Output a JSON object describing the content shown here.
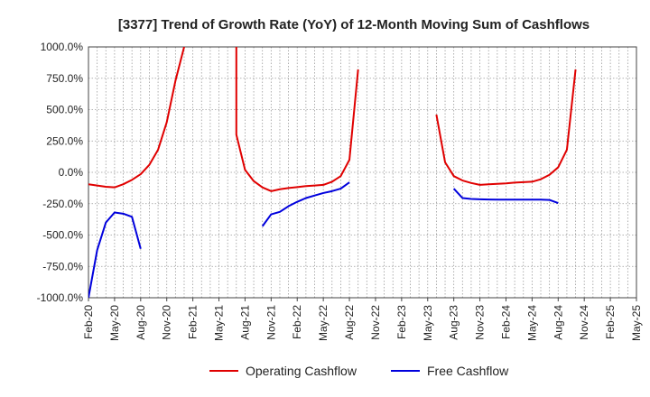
{
  "chart_data": {
    "type": "line",
    "title": "[3377]  Trend of Growth Rate (YoY) of 12-Month Moving Sum of Cashflows",
    "xlabel": "",
    "ylabel": "",
    "ylim": [
      -1000,
      1000
    ],
    "yticks": [
      -1000,
      -750,
      -500,
      -250,
      0,
      250,
      500,
      750,
      1000
    ],
    "ytick_labels": [
      "-1000.0%",
      "-750.0%",
      "-500.0%",
      "-250.0%",
      "0.0%",
      "250.0%",
      "500.0%",
      "750.0%",
      "1000.0%"
    ],
    "xlim": [
      "2020-02",
      "2025-05"
    ],
    "xtick_labels": [
      "Feb-20",
      "May-20",
      "Aug-20",
      "Nov-20",
      "Feb-21",
      "May-21",
      "Aug-21",
      "Nov-21",
      "Feb-22",
      "May-22",
      "Aug-22",
      "Nov-22",
      "Feb-23",
      "May-23",
      "Aug-23",
      "Nov-23",
      "Feb-24",
      "May-24",
      "Aug-24",
      "Nov-24",
      "Feb-25",
      "May-25"
    ],
    "grid": true,
    "legend_position": "bottom",
    "series": [
      {
        "name": "Operating Cashflow",
        "color": "#e00000",
        "segments": [
          [
            [
              "2020-02",
              -95
            ],
            [
              "2020-03",
              -105
            ],
            [
              "2020-04",
              -115
            ],
            [
              "2020-05",
              -120
            ],
            [
              "2020-06",
              -95
            ],
            [
              "2020-07",
              -60
            ],
            [
              "2020-08",
              -15
            ],
            [
              "2020-09",
              60
            ],
            [
              "2020-10",
              180
            ],
            [
              "2020-11",
              400
            ],
            [
              "2020-12",
              730
            ],
            [
              "2021-01",
              1000
            ]
          ],
          [
            [
              "2021-07",
              1000
            ],
            [
              "2021-07",
              300
            ],
            [
              "2021-08",
              20
            ],
            [
              "2021-09",
              -70
            ],
            [
              "2021-10",
              -120
            ],
            [
              "2021-11",
              -150
            ],
            [
              "2021-12",
              -135
            ],
            [
              "2022-01",
              -125
            ],
            [
              "2022-02",
              -118
            ],
            [
              "2022-03",
              -110
            ],
            [
              "2022-04",
              -105
            ],
            [
              "2022-05",
              -100
            ],
            [
              "2022-06",
              -75
            ],
            [
              "2022-07",
              -30
            ],
            [
              "2022-08",
              100
            ],
            [
              "2022-09",
              820
            ]
          ],
          [
            [
              "2023-06",
              460
            ],
            [
              "2023-07",
              80
            ],
            [
              "2023-08",
              -30
            ],
            [
              "2023-09",
              -65
            ],
            [
              "2023-10",
              -85
            ],
            [
              "2023-11",
              -100
            ],
            [
              "2023-12",
              -95
            ],
            [
              "2024-01",
              -92
            ],
            [
              "2024-02",
              -88
            ],
            [
              "2024-03",
              -82
            ],
            [
              "2024-04",
              -78
            ],
            [
              "2024-05",
              -75
            ],
            [
              "2024-06",
              -55
            ],
            [
              "2024-07",
              -20
            ],
            [
              "2024-08",
              40
            ],
            [
              "2024-09",
              180
            ],
            [
              "2024-10",
              820
            ]
          ]
        ]
      },
      {
        "name": "Free Cashflow",
        "color": "#0000dd",
        "segments": [
          [
            [
              "2020-02",
              -1000
            ],
            [
              "2020-03",
              -620
            ],
            [
              "2020-04",
              -400
            ],
            [
              "2020-05",
              -320
            ],
            [
              "2020-06",
              -330
            ],
            [
              "2020-07",
              -355
            ],
            [
              "2020-08",
              -610
            ]
          ],
          [
            [
              "2021-10",
              -430
            ],
            [
              "2021-11",
              -335
            ],
            [
              "2021-12",
              -315
            ],
            [
              "2022-01",
              -270
            ],
            [
              "2022-02",
              -235
            ],
            [
              "2022-03",
              -205
            ],
            [
              "2022-04",
              -185
            ],
            [
              "2022-05",
              -165
            ],
            [
              "2022-06",
              -150
            ],
            [
              "2022-07",
              -130
            ],
            [
              "2022-08",
              -80
            ]
          ],
          [
            [
              "2023-08",
              -130
            ],
            [
              "2023-09",
              -205
            ],
            [
              "2023-10",
              -212
            ],
            [
              "2023-11",
              -215
            ],
            [
              "2023-12",
              -217
            ],
            [
              "2024-01",
              -218
            ],
            [
              "2024-02",
              -218
            ],
            [
              "2024-03",
              -218
            ],
            [
              "2024-04",
              -218
            ],
            [
              "2024-05",
              -218
            ],
            [
              "2024-06",
              -218
            ],
            [
              "2024-07",
              -220
            ],
            [
              "2024-08",
              -245
            ]
          ]
        ]
      }
    ]
  }
}
